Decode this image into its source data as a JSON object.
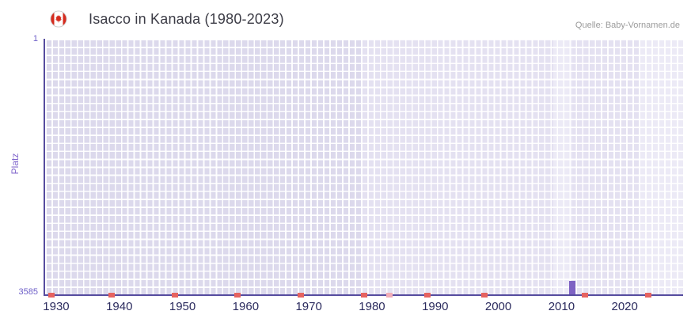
{
  "header": {
    "title": "Isacco in Kanada (1980-2023)",
    "source": "Quelle: Baby-Vornamen.de",
    "flag_icon": "canada-flag"
  },
  "colors": {
    "axis": "#564c9f",
    "bar": "#7e62c3",
    "plot_base": "#dcd9ec",
    "band_light": "#e4e1f1",
    "band_lighter": "#eceaf6",
    "mark_red": "#e66360",
    "mark_pink": "#f2aeb8",
    "x_tick_text": "#2b2b5e",
    "y_tick_text": "#6e5fc8",
    "title_text": "#3c3c46",
    "source_text": "#9b9b9b",
    "flag_red": "#d52b1e"
  },
  "chart_data": {
    "type": "bar",
    "title": "Isacco in Kanada (1980-2023)",
    "ylabel": "Platz",
    "y_tick_top": "1",
    "y_tick_bottom": "3585",
    "ylim": [
      1,
      3585
    ],
    "y_axis_inverted": true,
    "x_range": [
      1928,
      2029
    ],
    "x_ticks": [
      1930,
      1940,
      1950,
      1960,
      1970,
      1980,
      1990,
      2000,
      2010,
      2020
    ],
    "grid": true,
    "legend": "none",
    "series": [
      {
        "name": "Platz",
        "points": [
          {
            "year": 2011,
            "rank": 3400
          }
        ]
      }
    ],
    "baseline_marks": [
      {
        "year": 1928.5,
        "shade": "red"
      },
      {
        "year": 1938,
        "shade": "red"
      },
      {
        "year": 1948,
        "shade": "red"
      },
      {
        "year": 1958,
        "shade": "red"
      },
      {
        "year": 1968,
        "shade": "red"
      },
      {
        "year": 1978,
        "shade": "red"
      },
      {
        "year": 1982,
        "shade": "pink"
      },
      {
        "year": 1988,
        "shade": "red"
      },
      {
        "year": 1997,
        "shade": "red"
      },
      {
        "year": 2013,
        "shade": "red"
      },
      {
        "year": 2023,
        "shade": "red"
      }
    ],
    "background_bands": [
      {
        "start": 1978,
        "end": 2029,
        "shade": "light"
      },
      {
        "start": 2008.5,
        "end": 2011.5,
        "shade": "lighter"
      },
      {
        "start": 2022,
        "end": 2029,
        "shade": "lighter"
      }
    ]
  }
}
